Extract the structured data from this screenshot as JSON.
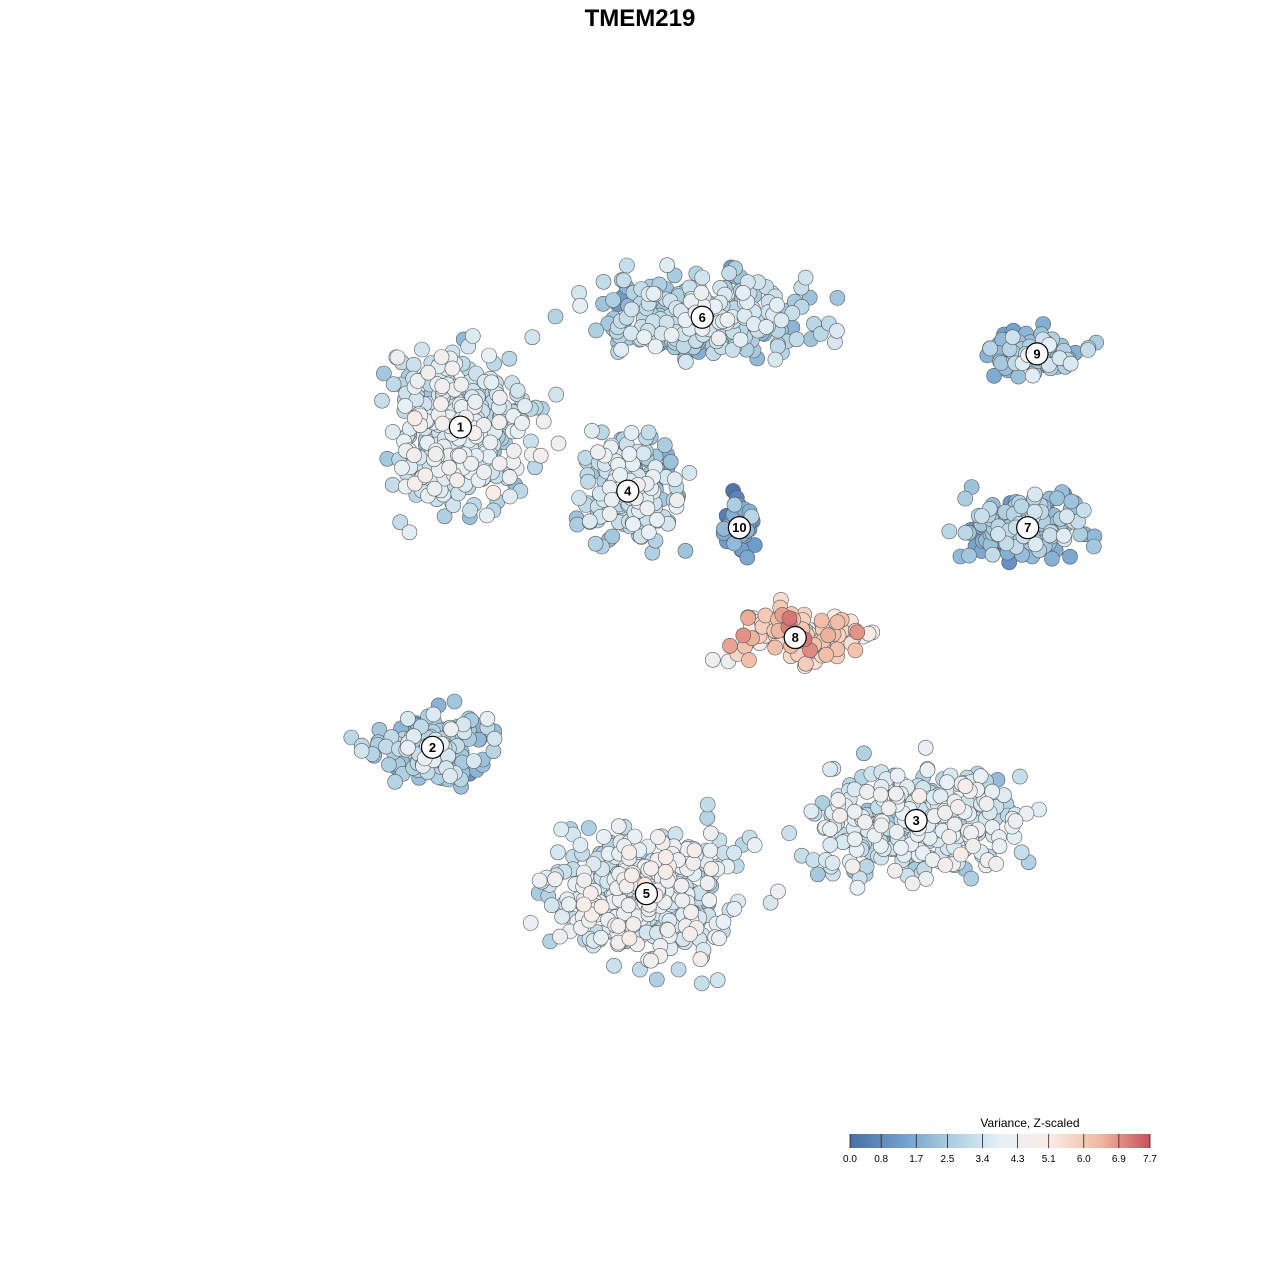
{
  "chart_data": {
    "type": "scatter",
    "title": "TMEM219",
    "xlabel": "",
    "ylabel": "",
    "grid": false,
    "legend_placement": "bottom-right",
    "colorbar": {
      "title": "Variance, Z-scaled",
      "range": [
        0,
        7.7
      ],
      "ticks": [
        {
          "value": 0.0,
          "label": "0.0"
        },
        {
          "value": 0.8,
          "label": "0.8"
        },
        {
          "value": 1.7,
          "label": "1.7"
        },
        {
          "value": 2.5,
          "label": "2.5"
        },
        {
          "value": 3.4,
          "label": "3.4"
        },
        {
          "value": 4.3,
          "label": "4.3"
        },
        {
          "value": 5.1,
          "label": "5.1"
        },
        {
          "value": 6.0,
          "label": "6.0"
        },
        {
          "value": 6.9,
          "label": "6.9"
        },
        {
          "value": 7.7,
          "label": "7.7"
        }
      ],
      "colors": [
        "#4a6fa5",
        "#6e9ccb",
        "#a9cde0",
        "#e6f0f6",
        "#fbece5",
        "#f1b8a0",
        "#c8505a"
      ]
    },
    "clusters": [
      {
        "label": "1",
        "x": 0.28,
        "y": 0.73,
        "mean_value": 3.4
      },
      {
        "label": "2",
        "x": 0.25,
        "y": 0.38,
        "mean_value": 2.6
      },
      {
        "label": "3",
        "x": 0.77,
        "y": 0.3,
        "mean_value": 3.4
      },
      {
        "label": "4",
        "x": 0.46,
        "y": 0.66,
        "mean_value": 3.0
      },
      {
        "label": "5",
        "x": 0.48,
        "y": 0.22,
        "mean_value": 3.6
      },
      {
        "label": "6",
        "x": 0.54,
        "y": 0.85,
        "mean_value": 2.8
      },
      {
        "label": "7",
        "x": 0.89,
        "y": 0.62,
        "mean_value": 2.2
      },
      {
        "label": "8",
        "x": 0.64,
        "y": 0.5,
        "mean_value": 5.5
      },
      {
        "label": "9",
        "x": 0.9,
        "y": 0.81,
        "mean_value": 2.3
      },
      {
        "label": "10",
        "x": 0.58,
        "y": 0.62,
        "mean_value": 1.2
      }
    ]
  }
}
